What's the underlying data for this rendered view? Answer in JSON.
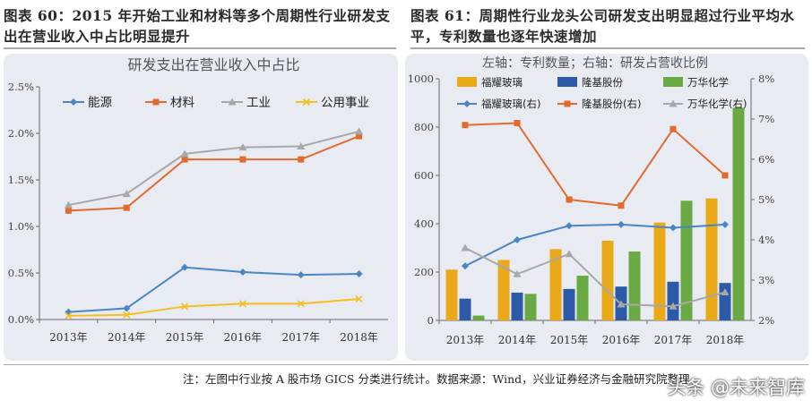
{
  "left_figure_caption": "图表 60：2015 年开始工业和材料等多个周期性行业研发支出在营业收入中占比明显提升",
  "right_figure_caption": "图表 61：周期性行业龙头公司研发支出明显超过行业平均水平，专利数量也逐年快速增加",
  "footnote": "注：左图中行业按 A 股市场 GICS 分类进行统计。数据来源：Wind，兴业证券经济与金融研究院整理",
  "watermark": "头条 @未来智库",
  "colors": {
    "blue": "#4a86c5",
    "orange": "#e26a2c",
    "gray": "#a8a8a8",
    "yellow": "#f4c020",
    "gold": "#e9a919",
    "navy": "#2d5aa8",
    "green": "#6aaa45",
    "panel": "#e8ebf1"
  },
  "chart_data": [
    {
      "type": "line",
      "title": "研发支出在营业收入中占比",
      "x": [
        "2013年",
        "2014年",
        "2015年",
        "2016年",
        "2017年",
        "2018年"
      ],
      "yticks": [
        "0.0%",
        "0.5%",
        "1.0%",
        "1.5%",
        "2.0%",
        "2.5%"
      ],
      "ylim": [
        0,
        2.5
      ],
      "legend_position": "top",
      "series": [
        {
          "name": "能源",
          "marker": "diamond",
          "color": "#4a86c5",
          "values": [
            0.08,
            0.12,
            0.56,
            0.51,
            0.48,
            0.49
          ]
        },
        {
          "name": "材料",
          "marker": "square",
          "color": "#e26a2c",
          "values": [
            1.17,
            1.2,
            1.72,
            1.72,
            1.72,
            1.97
          ]
        },
        {
          "name": "工业",
          "marker": "triangle",
          "color": "#a8a8a8",
          "values": [
            1.23,
            1.35,
            1.78,
            1.85,
            1.86,
            2.02
          ]
        },
        {
          "name": "公用事业",
          "marker": "x",
          "color": "#f4c020",
          "values": [
            0.04,
            0.05,
            0.14,
            0.17,
            0.17,
            0.22
          ]
        }
      ]
    },
    {
      "type": "bar+line",
      "title": "左轴：专利数量；右轴：研发占营收比例",
      "x": [
        "2013年",
        "2014年",
        "2015年",
        "2016年",
        "2017年",
        "2018年"
      ],
      "yticks_left": [
        "0",
        "200",
        "400",
        "600",
        "800",
        "1000"
      ],
      "ylim_left": [
        0,
        1000
      ],
      "yticks_right": [
        "2%",
        "3%",
        "4%",
        "5%",
        "6%",
        "7%",
        "8%"
      ],
      "ylim_right": [
        2,
        8
      ],
      "legend_position": "top",
      "bar_series": [
        {
          "name": "福耀玻璃",
          "color": "#e9a919",
          "values": [
            210,
            250,
            295,
            330,
            405,
            505
          ]
        },
        {
          "name": "隆基股份",
          "color": "#2d5aa8",
          "values": [
            90,
            115,
            130,
            140,
            160,
            155
          ]
        },
        {
          "name": "万华化学",
          "color": "#6aaa45",
          "values": [
            20,
            110,
            185,
            285,
            495,
            880
          ]
        }
      ],
      "line_series": [
        {
          "name": "福耀玻璃(右)",
          "marker": "diamond",
          "color": "#4a86c5",
          "values": [
            3.35,
            4.0,
            4.35,
            4.38,
            4.3,
            4.38
          ]
        },
        {
          "name": "隆基股份(右)",
          "marker": "square",
          "color": "#e26a2c",
          "values": [
            6.85,
            6.9,
            5.0,
            4.85,
            6.75,
            5.6
          ]
        },
        {
          "name": "万华化学(右)",
          "marker": "triangle",
          "color": "#a8a8a8",
          "values": [
            3.8,
            3.15,
            3.65,
            2.4,
            2.35,
            2.7
          ]
        }
      ]
    }
  ]
}
